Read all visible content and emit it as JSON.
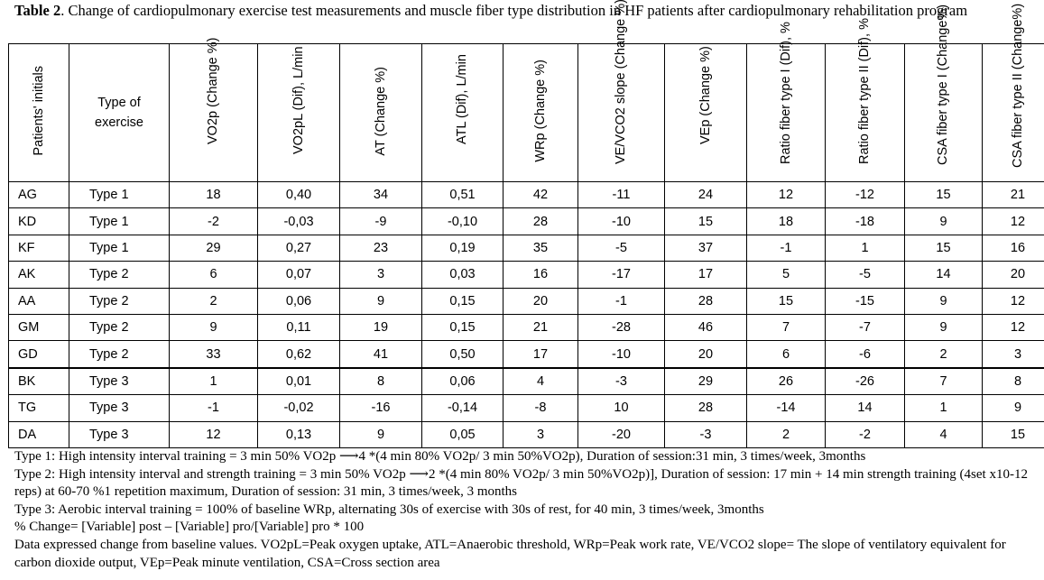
{
  "caption": {
    "label": "Table 2",
    "text": ". Change of cardiopulmonary exercise test measurements and muscle fiber type distribution in HF patients after cardiopulmonary rehabilitation program"
  },
  "table": {
    "headers": [
      "Patients' initials",
      "Type of exercise",
      "VO2p (Change %)",
      "VO2pL (Dif), L/min",
      "AT (Change %)",
      "ATL (Dif), L/min",
      "WRp (Change %)",
      "VE/VCO2 slope (Change %)",
      "VEp (Change %)",
      "Ratio fiber type I (Dif), %",
      "Ratio fiber type II (Dif), %",
      "CSA fiber type I (Change%)",
      "CSA fiber type II (Change%)"
    ],
    "rows": [
      [
        "AG",
        "Type 1",
        "18",
        "0,40",
        "34",
        "0,51",
        "42",
        "-11",
        "24",
        "12",
        "-12",
        "15",
        "21"
      ],
      [
        "KD",
        "Type 1",
        "-2",
        "-0,03",
        "-9",
        "-0,10",
        "28",
        "-10",
        "15",
        "18",
        "-18",
        "9",
        "12"
      ],
      [
        "KF",
        "Type 1",
        "29",
        "0,27",
        "23",
        "0,19",
        "35",
        "-5",
        "37",
        "-1",
        "1",
        "15",
        "16"
      ],
      [
        "AK",
        "Type 2",
        "6",
        "0,07",
        "3",
        "0,03",
        "16",
        "-17",
        "17",
        "5",
        "-5",
        "14",
        "20"
      ],
      [
        "AA",
        "Type 2",
        "2",
        "0,06",
        "9",
        "0,15",
        "20",
        "-1",
        "28",
        "15",
        "-15",
        "9",
        "12"
      ],
      [
        "GM",
        "Type 2",
        "9",
        "0,11",
        "19",
        "0,15",
        "21",
        "-28",
        "46",
        "7",
        "-7",
        "9",
        "12"
      ],
      [
        "GD",
        "Type 2",
        "33",
        "0,62",
        "41",
        "0,50",
        "17",
        "-10",
        "20",
        "6",
        "-6",
        "2",
        "3"
      ],
      [
        "BK",
        "Type 3",
        "1",
        "0,01",
        "8",
        "0,06",
        "4",
        "-3",
        "29",
        "26",
        "-26",
        "7",
        "8"
      ],
      [
        "TG",
        "Type 3",
        "-1",
        "-0,02",
        "-16",
        "-0,14",
        "-8",
        "10",
        "28",
        "-14",
        "14",
        "1",
        "9"
      ],
      [
        "DA",
        "Type 3",
        "12",
        "0,13",
        "9",
        "0,05",
        "3",
        "-20",
        "-3",
        "2",
        "-2",
        "4",
        "15"
      ]
    ]
  },
  "notes": [
    "Type 1: High intensity interval training =  3 min 50% VO2p ⟶4 *(4  min 80% VO2p/ 3 min 50%VO2p),  Duration  of session:31 min, 3 times/week, 3months",
    "Type 2: High intensity interval and strength training = 3 min 50% VO2p ⟶2 *(4 min 80% VO2p/ 3 min 50%VO2p)], Duration of session: 17 min + 14 min strength training (4set x10-12 reps) at  60-70 %1 repetition maximum, Duration of session: 31 min, 3 times/week, 3 months",
    "Type 3: Aerobic interval training = 100% of baseline WRp, alternating 30s of exercise with 30s of rest, for 40 min, 3 times/week, 3months",
    "% Change= [Variable] post – [Variable] pro/[Variable] pro  * 100",
    "Data expressed change from baseline values. VO2pL=Peak oxygen uptake, ATL=Anaerobic threshold, WRp=Peak work rate, VE/VCO2 slope= The slope of ventilatory equivalent for carbon dioxide output, VEp=Peak minute ventilation, CSA=Cross section area"
  ]
}
